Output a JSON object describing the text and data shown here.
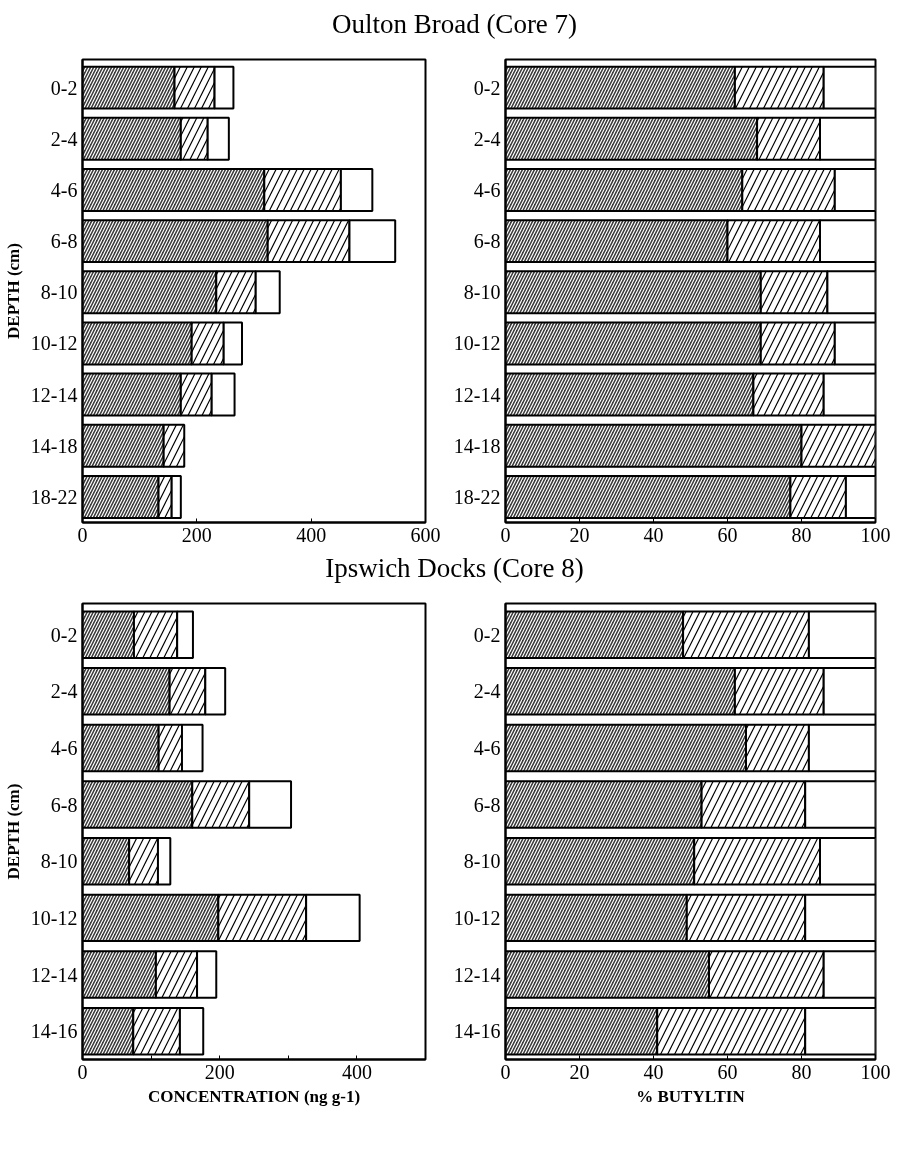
{
  "chart_data": [
    {
      "type": "bar",
      "orientation": "horizontal",
      "stacked": true,
      "title": "Oulton Broad (Core 7)",
      "ylabel": "DEPTH (cm)",
      "categories": [
        "0-2",
        "2-4",
        "4-6",
        "6-8",
        "8-10",
        "10-12",
        "12-14",
        "14-18",
        "18-22"
      ],
      "xlim": [
        0,
        600
      ],
      "xticks": [
        0,
        200,
        400,
        600
      ],
      "series": [
        {
          "color": "#3a3a3a",
          "values": [
            161,
            172,
            318,
            324,
            234,
            191,
            172,
            142,
            133
          ]
        },
        {
          "color": "#ffffff",
          "values": [
            70,
            47,
            134,
            143,
            69,
            56,
            54,
            36,
            23
          ]
        },
        {
          "color": "#ffffff",
          "values": [
            33,
            37,
            55,
            80,
            42,
            32,
            40,
            null,
            16
          ]
        }
      ]
    },
    {
      "type": "bar",
      "orientation": "horizontal",
      "stacked": true,
      "categories": [
        "0-2",
        "2-4",
        "4-6",
        "6-8",
        "8-10",
        "10-12",
        "12-14",
        "14-18",
        "18-22"
      ],
      "xlim": [
        0,
        100
      ],
      "xticks": [
        0,
        20,
        40,
        60,
        80,
        100
      ],
      "series": [
        {
          "color": "#3a3a3a",
          "values": [
            62,
            68,
            64,
            60,
            69,
            69,
            67,
            80,
            77
          ]
        },
        {
          "color": "#ffffff",
          "values": [
            24,
            17,
            25,
            25,
            18,
            20,
            19,
            20,
            15
          ]
        },
        {
          "color": "#ffffff",
          "values": [
            14,
            15,
            11,
            15,
            13,
            11,
            14,
            null,
            8
          ]
        }
      ]
    },
    {
      "type": "bar",
      "orientation": "horizontal",
      "stacked": true,
      "title": "Ipswich Docks (Core 8)",
      "ylabel": "DEPTH (cm)",
      "xlabel": "CONCENTRATION (ng g-1)",
      "categories": [
        "0-2",
        "2-4",
        "4-6",
        "6-8",
        "8-10",
        "10-12",
        "12-14",
        "14-16"
      ],
      "xlim": [
        0,
        500
      ],
      "xticks": [
        0,
        {
          "value": 100,
          "label": null
        },
        200,
        {
          "value": 300,
          "label": null
        },
        400,
        {
          "value": 500,
          "label": null
        }
      ],
      "series": [
        {
          "color": "#3a3a3a",
          "values": [
            75,
            127,
            111,
            160,
            68,
            198,
            107,
            74
          ]
        },
        {
          "color": "#ffffff",
          "values": [
            63,
            52,
            34,
            83,
            42,
            128,
            60,
            68
          ]
        },
        {
          "color": "#ffffff",
          "values": [
            23,
            29,
            30,
            61,
            18,
            78,
            28,
            34
          ]
        }
      ]
    },
    {
      "type": "bar",
      "orientation": "horizontal",
      "stacked": true,
      "xlabel": "% BUTYLTIN",
      "categories": [
        "0-2",
        "2-4",
        "4-6",
        "6-8",
        "8-10",
        "10-12",
        "12-14",
        "14-16"
      ],
      "xlim": [
        0,
        100
      ],
      "xticks": [
        0,
        20,
        40,
        60,
        80,
        100
      ],
      "series": [
        {
          "color": "#3a3a3a",
          "values": [
            48,
            62,
            65,
            53,
            51,
            49,
            55,
            41
          ]
        },
        {
          "color": "#ffffff",
          "values": [
            34,
            24,
            17,
            28,
            34,
            32,
            31,
            40
          ]
        },
        {
          "color": "#ffffff",
          "values": [
            18,
            14,
            18,
            19,
            15,
            19,
            14,
            19
          ]
        }
      ]
    }
  ]
}
